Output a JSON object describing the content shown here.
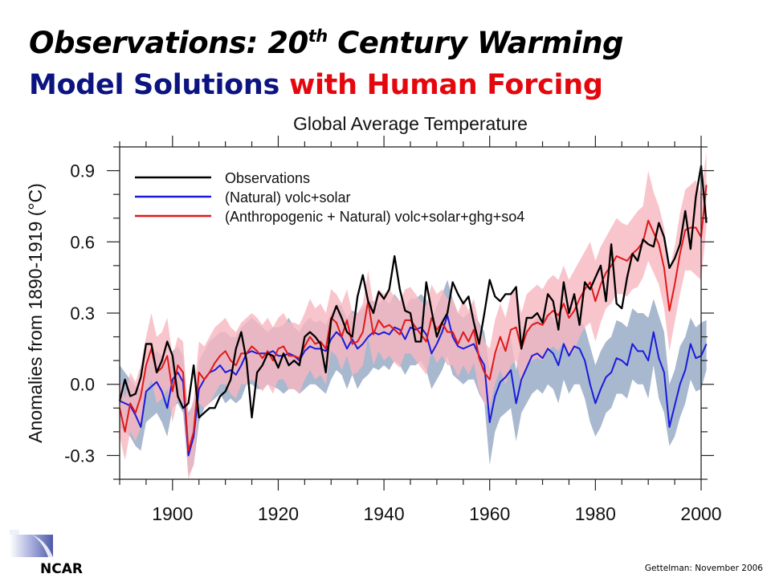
{
  "slide": {
    "title_line1_prefix": "Observations: 20",
    "title_line1_sup": "th",
    "title_line1_suffix": " Century Warming",
    "title_line2_blue": "Model Solutions ",
    "title_line2_red": "with Human Forcing",
    "colors": {
      "title_blue": "#0c1480",
      "title_red": "#e4080e"
    },
    "logo_text": "NCAR",
    "credit": "Gettelman: November 2006"
  },
  "chart_data": {
    "type": "line",
    "title": "Global Average Temperature",
    "xlabel": "",
    "ylabel": "Anomalies from 1890-1919 (°C)",
    "xlim": [
      1890,
      2000
    ],
    "ylim": [
      -0.4,
      1.0
    ],
    "xticks": [
      1900,
      1920,
      1940,
      1960,
      1980,
      2000
    ],
    "yticks": [
      -0.3,
      0.0,
      0.3,
      0.6,
      0.9
    ],
    "ytick_labels": [
      "-0.3",
      "0.0",
      "0.3",
      "0.6",
      "0.9"
    ],
    "grid": false,
    "legend_position": "top-left",
    "x_start": 1890,
    "series": [
      {
        "name": "Observations",
        "color": "#000000",
        "values": [
          -0.07,
          0.02,
          -0.05,
          -0.04,
          0.03,
          0.17,
          0.17,
          0.05,
          0.1,
          0.18,
          0.12,
          -0.05,
          -0.1,
          -0.08,
          0.08,
          -0.14,
          -0.12,
          -0.1,
          -0.1,
          -0.05,
          -0.03,
          0.02,
          0.15,
          0.22,
          0.1,
          -0.14,
          0.05,
          0.08,
          0.13,
          0.12,
          0.07,
          0.13,
          0.08,
          0.1,
          0.08,
          0.2,
          0.22,
          0.2,
          0.17,
          0.05,
          0.27,
          0.33,
          0.28,
          0.22,
          0.2,
          0.37,
          0.46,
          0.35,
          0.3,
          0.39,
          0.36,
          0.4,
          0.54,
          0.4,
          0.31,
          0.3,
          0.18,
          0.18,
          0.43,
          0.31,
          0.2,
          0.26,
          0.3,
          0.43,
          0.38,
          0.34,
          0.37,
          0.26,
          0.17,
          0.3,
          0.44,
          0.37,
          0.35,
          0.38,
          0.38,
          0.41,
          0.15,
          0.28,
          0.28,
          0.3,
          0.26,
          0.38,
          0.35,
          0.23,
          0.43,
          0.3,
          0.38,
          0.25,
          0.43,
          0.4,
          0.45,
          0.5,
          0.35,
          0.59,
          0.34,
          0.32,
          0.45,
          0.55,
          0.52,
          0.61,
          0.59,
          0.58,
          0.68,
          0.62,
          0.49,
          0.53,
          0.59,
          0.73,
          0.57,
          0.79,
          0.92,
          0.68
        ]
      },
      {
        "name": "(Natural) volc+solar",
        "color": "#1a1adc",
        "band_color": "#a3b4cb",
        "values": [
          -0.07,
          -0.08,
          -0.09,
          -0.13,
          -0.18,
          -0.03,
          -0.01,
          0.01,
          -0.03,
          -0.1,
          0.02,
          0.05,
          0.01,
          -0.3,
          -0.22,
          -0.02,
          0.02,
          0.05,
          0.06,
          0.08,
          0.05,
          0.06,
          0.04,
          0.08,
          0.13,
          0.14,
          0.13,
          0.13,
          0.13,
          0.14,
          0.12,
          0.12,
          0.13,
          0.12,
          0.1,
          0.14,
          0.16,
          0.15,
          0.15,
          0.14,
          0.19,
          0.22,
          0.2,
          0.15,
          0.19,
          0.15,
          0.17,
          0.2,
          0.22,
          0.21,
          0.22,
          0.21,
          0.24,
          0.23,
          0.19,
          0.24,
          0.23,
          0.24,
          0.21,
          0.13,
          0.17,
          0.22,
          0.29,
          0.2,
          0.16,
          0.15,
          0.16,
          0.17,
          0.12,
          0.08,
          -0.16,
          -0.05,
          0.01,
          0.03,
          0.06,
          -0.08,
          0.02,
          0.07,
          0.12,
          0.13,
          0.11,
          0.15,
          0.13,
          0.08,
          0.17,
          0.12,
          0.16,
          0.15,
          0.1,
          0.0,
          -0.08,
          -0.02,
          0.03,
          0.05,
          0.11,
          0.1,
          0.08,
          0.17,
          0.14,
          0.14,
          0.1,
          0.22,
          0.11,
          0.05,
          -0.18,
          -0.09,
          0.0,
          0.06,
          0.17,
          0.11,
          0.12,
          0.17
        ],
        "band_upper": [
          0.08,
          0.05,
          0.02,
          -0.01,
          -0.02,
          0.1,
          0.12,
          0.14,
          0.12,
          0.08,
          0.14,
          0.16,
          0.12,
          -0.12,
          -0.08,
          0.1,
          0.14,
          0.18,
          0.2,
          0.22,
          0.22,
          0.2,
          0.2,
          0.24,
          0.26,
          0.28,
          0.26,
          0.24,
          0.22,
          0.24,
          0.24,
          0.25,
          0.28,
          0.24,
          0.22,
          0.26,
          0.28,
          0.26,
          0.27,
          0.25,
          0.3,
          0.34,
          0.33,
          0.28,
          0.31,
          0.3,
          0.32,
          0.35,
          0.35,
          0.34,
          0.36,
          0.34,
          0.38,
          0.35,
          0.32,
          0.36,
          0.36,
          0.38,
          0.36,
          0.28,
          0.33,
          0.38,
          0.44,
          0.36,
          0.3,
          0.28,
          0.3,
          0.3,
          0.26,
          0.22,
          0.06,
          0.12,
          0.16,
          0.18,
          0.2,
          0.06,
          0.18,
          0.22,
          0.26,
          0.28,
          0.27,
          0.3,
          0.28,
          0.22,
          0.32,
          0.28,
          0.32,
          0.28,
          0.24,
          0.16,
          0.08,
          0.14,
          0.18,
          0.2,
          0.27,
          0.26,
          0.24,
          0.32,
          0.3,
          0.3,
          0.28,
          0.36,
          0.29,
          0.22,
          0.0,
          0.06,
          0.16,
          0.2,
          0.28,
          0.24,
          0.26,
          0.27
        ],
        "band_lower": [
          -0.18,
          -0.2,
          -0.22,
          -0.26,
          -0.28,
          -0.16,
          -0.14,
          -0.12,
          -0.16,
          -0.22,
          -0.1,
          -0.08,
          -0.12,
          -0.38,
          -0.34,
          -0.16,
          -0.1,
          -0.08,
          -0.06,
          -0.04,
          -0.08,
          -0.06,
          -0.08,
          -0.06,
          0.0,
          0.0,
          -0.02,
          -0.02,
          0.0,
          -0.01,
          -0.02,
          -0.04,
          -0.02,
          -0.02,
          -0.04,
          -0.02,
          0.0,
          0.0,
          -0.02,
          -0.04,
          0.02,
          0.06,
          0.04,
          -0.02,
          0.04,
          -0.02,
          0.02,
          0.04,
          0.07,
          0.06,
          0.08,
          0.06,
          0.1,
          0.08,
          0.04,
          0.08,
          0.08,
          0.1,
          0.06,
          -0.02,
          0.02,
          0.06,
          0.12,
          0.04,
          0.02,
          0.0,
          0.02,
          0.02,
          -0.04,
          -0.08,
          -0.34,
          -0.2,
          -0.14,
          -0.12,
          -0.1,
          -0.24,
          -0.12,
          -0.08,
          -0.04,
          -0.02,
          -0.04,
          0.0,
          -0.02,
          -0.08,
          0.02,
          -0.04,
          0.0,
          0.0,
          -0.06,
          -0.16,
          -0.22,
          -0.18,
          -0.12,
          -0.1,
          -0.04,
          -0.04,
          -0.06,
          0.02,
          0.0,
          0.0,
          -0.06,
          0.08,
          -0.06,
          -0.12,
          -0.26,
          -0.22,
          -0.14,
          -0.08,
          0.02,
          -0.03,
          -0.02,
          0.06
        ]
      },
      {
        "name": "(Anthropogenic + Natural) volc+solar+ghg+so4",
        "color": "#e01818",
        "band_color": "#f8b6c0",
        "values": [
          -0.1,
          -0.2,
          -0.08,
          -0.12,
          -0.05,
          0.08,
          0.15,
          0.05,
          0.07,
          0.12,
          -0.03,
          0.08,
          0.05,
          -0.28,
          -0.2,
          0.05,
          0.02,
          0.05,
          0.09,
          0.12,
          0.14,
          0.1,
          0.08,
          0.13,
          0.13,
          0.16,
          0.14,
          0.11,
          0.14,
          0.1,
          0.15,
          0.16,
          0.12,
          0.12,
          0.11,
          0.16,
          0.2,
          0.17,
          0.18,
          0.15,
          0.28,
          0.26,
          0.2,
          0.27,
          0.17,
          0.18,
          0.22,
          0.35,
          0.21,
          0.27,
          0.24,
          0.25,
          0.23,
          0.21,
          0.27,
          0.27,
          0.24,
          0.21,
          0.18,
          0.28,
          0.23,
          0.26,
          0.22,
          0.22,
          0.17,
          0.22,
          0.18,
          0.23,
          0.11,
          0.05,
          0.02,
          0.13,
          0.2,
          0.14,
          0.23,
          0.24,
          0.15,
          0.22,
          0.25,
          0.26,
          0.25,
          0.29,
          0.31,
          0.29,
          0.34,
          0.28,
          0.31,
          0.36,
          0.4,
          0.43,
          0.35,
          0.42,
          0.47,
          0.5,
          0.54,
          0.53,
          0.52,
          0.55,
          0.57,
          0.6,
          0.69,
          0.64,
          0.59,
          0.49,
          0.31,
          0.42,
          0.55,
          0.65,
          0.66,
          0.66,
          0.62,
          0.84
        ],
        "band_upper": [
          0.02,
          -0.06,
          0.05,
          0.01,
          0.08,
          0.2,
          0.3,
          0.2,
          0.22,
          0.28,
          0.12,
          0.2,
          0.18,
          -0.14,
          -0.06,
          0.18,
          0.16,
          0.2,
          0.24,
          0.26,
          0.28,
          0.24,
          0.22,
          0.26,
          0.28,
          0.3,
          0.28,
          0.25,
          0.28,
          0.24,
          0.28,
          0.3,
          0.26,
          0.26,
          0.25,
          0.3,
          0.36,
          0.32,
          0.34,
          0.3,
          0.4,
          0.38,
          0.34,
          0.4,
          0.3,
          0.3,
          0.34,
          0.48,
          0.34,
          0.4,
          0.38,
          0.4,
          0.37,
          0.35,
          0.4,
          0.41,
          0.38,
          0.35,
          0.33,
          0.42,
          0.38,
          0.4,
          0.36,
          0.36,
          0.3,
          0.36,
          0.31,
          0.36,
          0.25,
          0.18,
          0.15,
          0.27,
          0.34,
          0.28,
          0.38,
          0.4,
          0.3,
          0.38,
          0.4,
          0.42,
          0.4,
          0.44,
          0.46,
          0.44,
          0.5,
          0.44,
          0.48,
          0.52,
          0.56,
          0.6,
          0.52,
          0.58,
          0.62,
          0.66,
          0.7,
          0.68,
          0.67,
          0.7,
          0.73,
          0.75,
          0.9,
          0.81,
          0.75,
          0.66,
          0.48,
          0.58,
          0.72,
          0.82,
          0.84,
          0.86,
          0.8,
          0.98
        ],
        "band_lower": [
          -0.22,
          -0.32,
          -0.2,
          -0.24,
          -0.18,
          -0.04,
          0.02,
          -0.08,
          -0.06,
          -0.02,
          -0.16,
          -0.06,
          -0.08,
          -0.4,
          -0.34,
          -0.08,
          -0.1,
          -0.08,
          -0.04,
          0.0,
          0.0,
          -0.04,
          -0.06,
          0.0,
          0.0,
          0.02,
          0.0,
          -0.03,
          0.0,
          -0.04,
          0.02,
          0.02,
          -0.02,
          -0.02,
          -0.04,
          0.02,
          0.06,
          0.02,
          0.04,
          0.0,
          0.14,
          0.12,
          0.06,
          0.12,
          0.04,
          0.05,
          0.08,
          0.2,
          0.08,
          0.14,
          0.1,
          0.12,
          0.09,
          0.07,
          0.13,
          0.13,
          0.1,
          0.07,
          0.04,
          0.14,
          0.09,
          0.12,
          0.08,
          0.08,
          0.03,
          0.08,
          0.04,
          0.09,
          -0.03,
          -0.08,
          -0.1,
          0.0,
          0.06,
          0.0,
          0.08,
          0.1,
          0.0,
          0.07,
          0.1,
          0.11,
          0.1,
          0.14,
          0.16,
          0.14,
          0.18,
          0.12,
          0.14,
          0.2,
          0.24,
          0.26,
          0.18,
          0.26,
          0.32,
          0.34,
          0.38,
          0.38,
          0.37,
          0.4,
          0.41,
          0.45,
          0.52,
          0.47,
          0.42,
          0.32,
          0.14,
          0.26,
          0.38,
          0.48,
          0.48,
          0.46,
          0.44,
          0.66
        ]
      }
    ]
  }
}
